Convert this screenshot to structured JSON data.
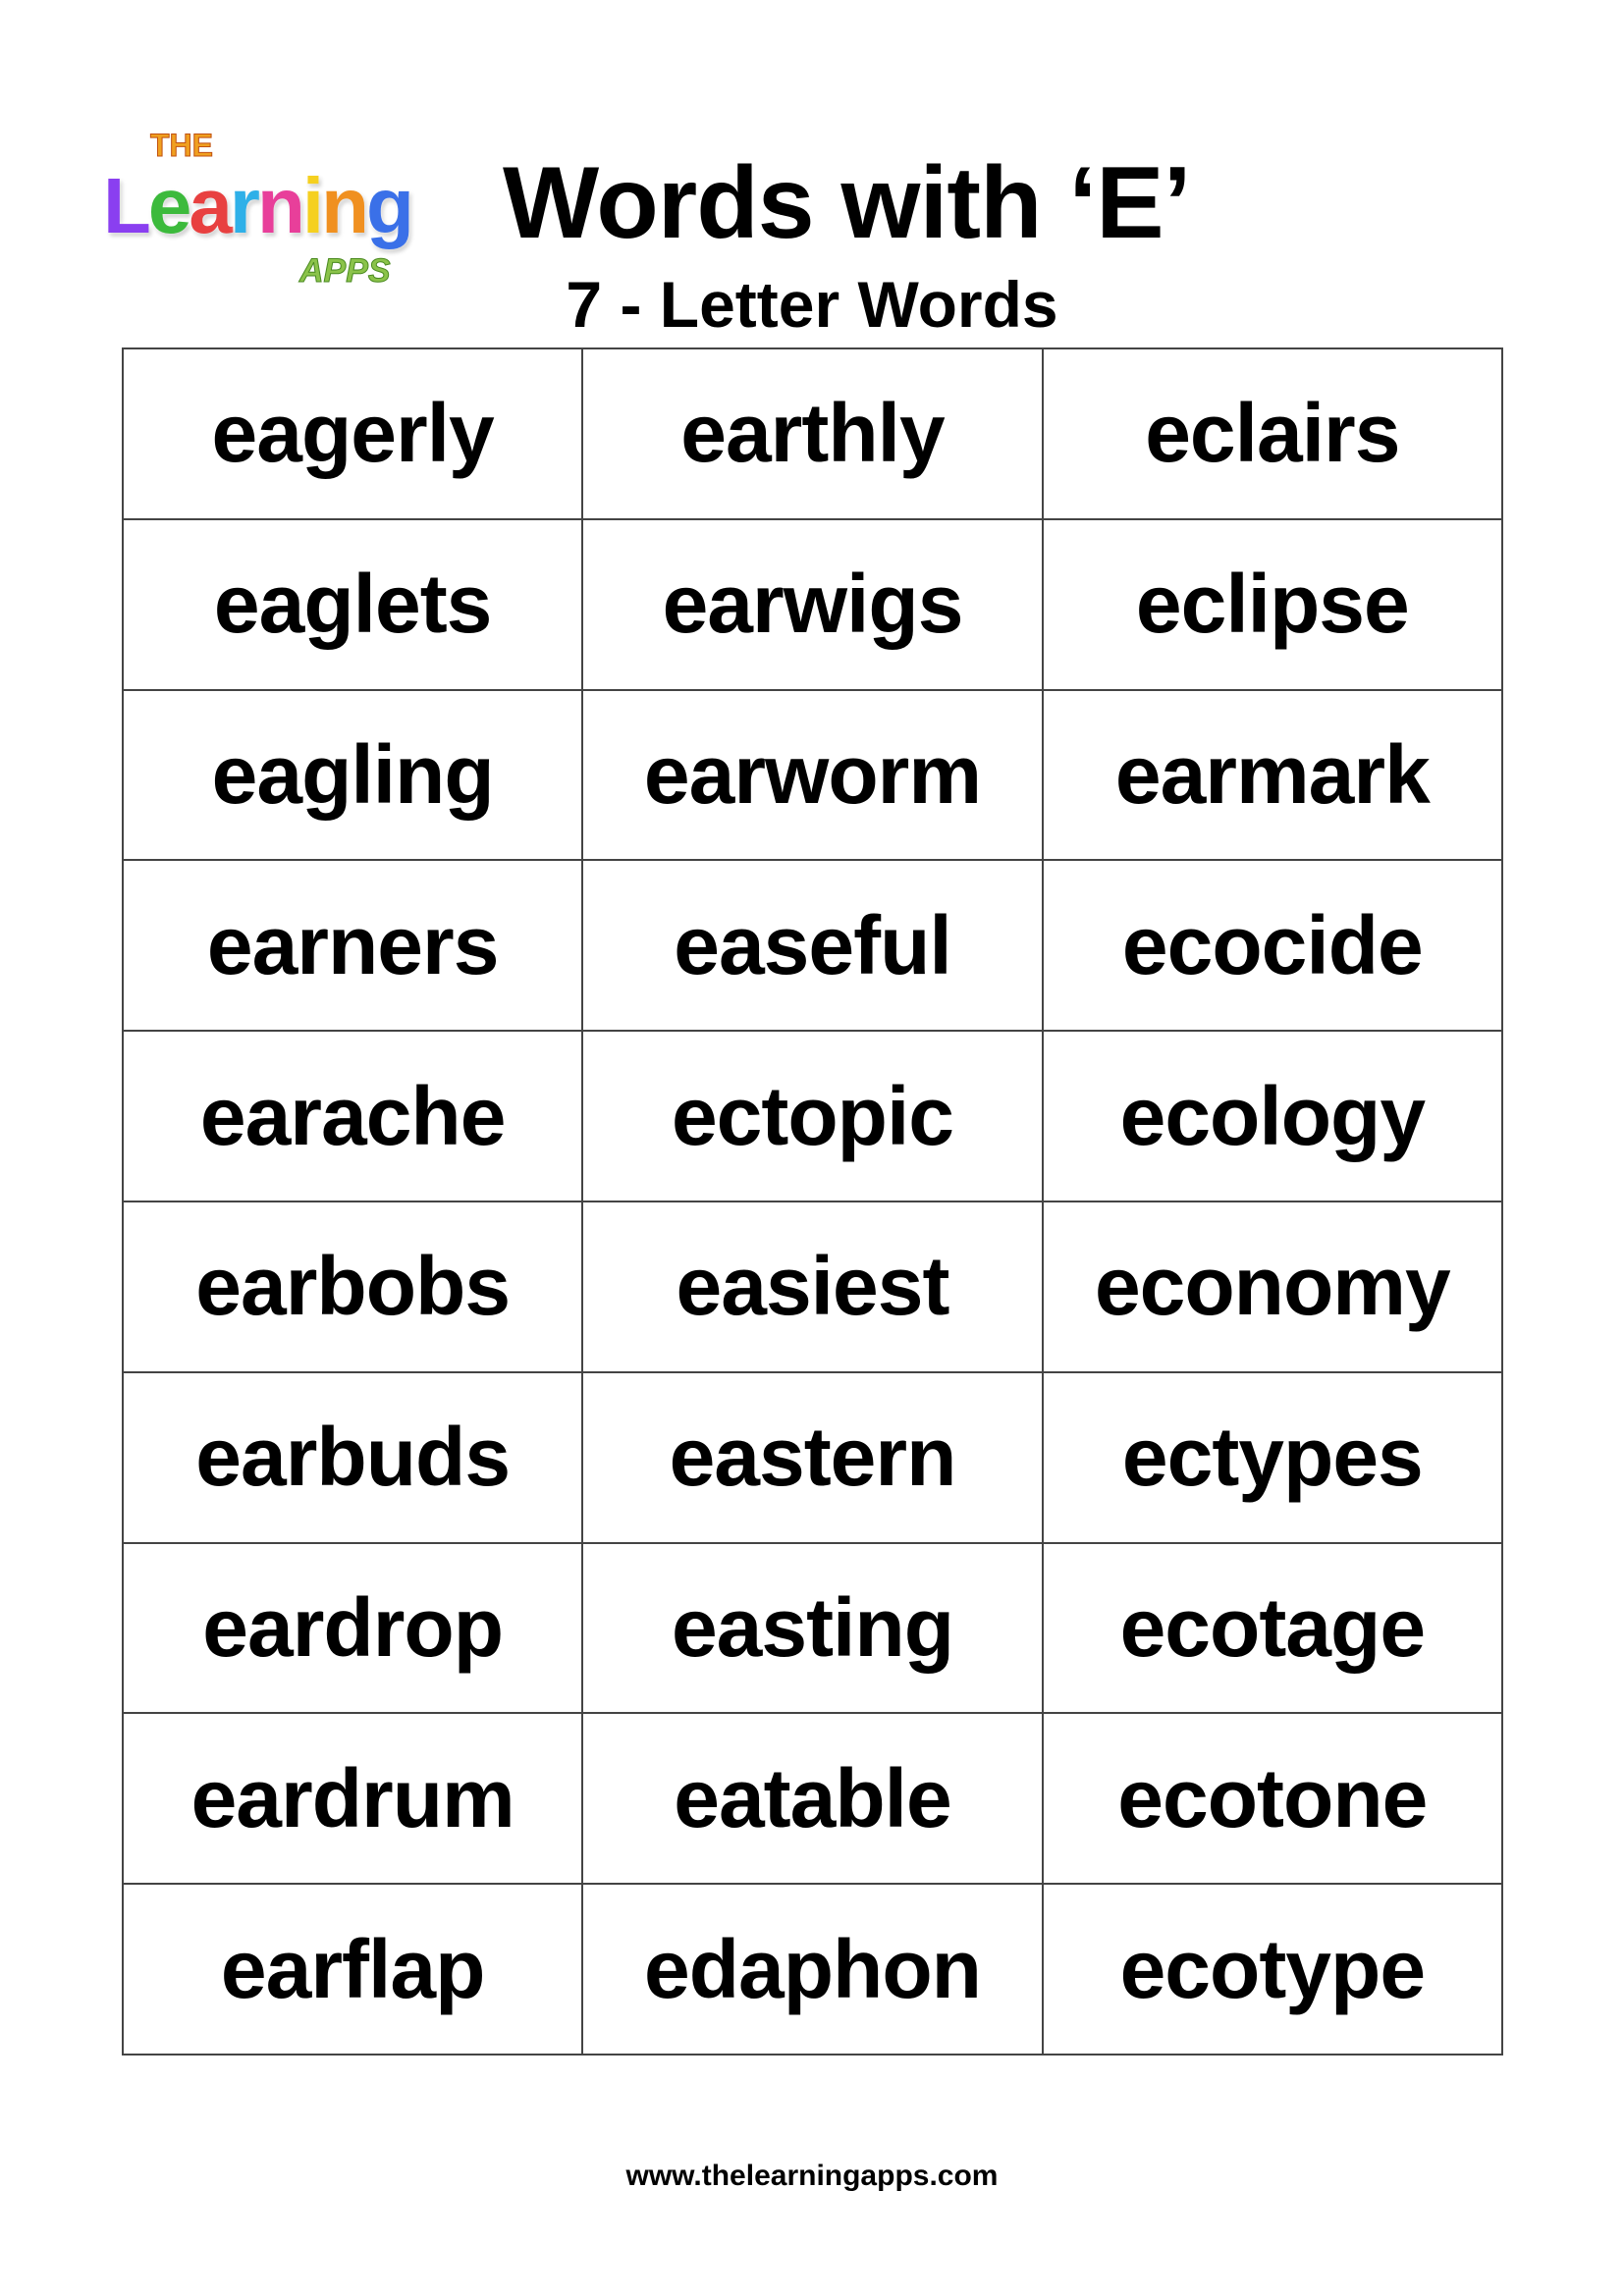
{
  "logo": {
    "top": "THE",
    "main": "Learning",
    "bottom": "APPS",
    "letter_colors": [
      "#8a3ff0",
      "#3cba3c",
      "#e84040",
      "#2fb0e8",
      "#e83f9a",
      "#f5d020",
      "#f09020",
      "#3a70e8"
    ]
  },
  "header": {
    "title": "Words with ‘E’",
    "subtitle": "7 - Letter Words"
  },
  "words": [
    [
      "eagerly",
      "earthly",
      "eclairs"
    ],
    [
      "eaglets",
      "earwigs",
      "eclipse"
    ],
    [
      "eagling",
      "earworm",
      "earmark"
    ],
    [
      "earners",
      "easeful",
      "ecocide"
    ],
    [
      "earache",
      "ectopic",
      "ecology"
    ],
    [
      "earbobs",
      "easiest",
      "economy"
    ],
    [
      "earbuds",
      "eastern",
      "ectypes"
    ],
    [
      "eardrop",
      "easting",
      "ecotage"
    ],
    [
      "eardrum",
      "eatable",
      "ecotone"
    ],
    [
      "earflap",
      "edaphon",
      "ecotype"
    ]
  ],
  "footer": {
    "url": "www.thelearningapps.com"
  }
}
